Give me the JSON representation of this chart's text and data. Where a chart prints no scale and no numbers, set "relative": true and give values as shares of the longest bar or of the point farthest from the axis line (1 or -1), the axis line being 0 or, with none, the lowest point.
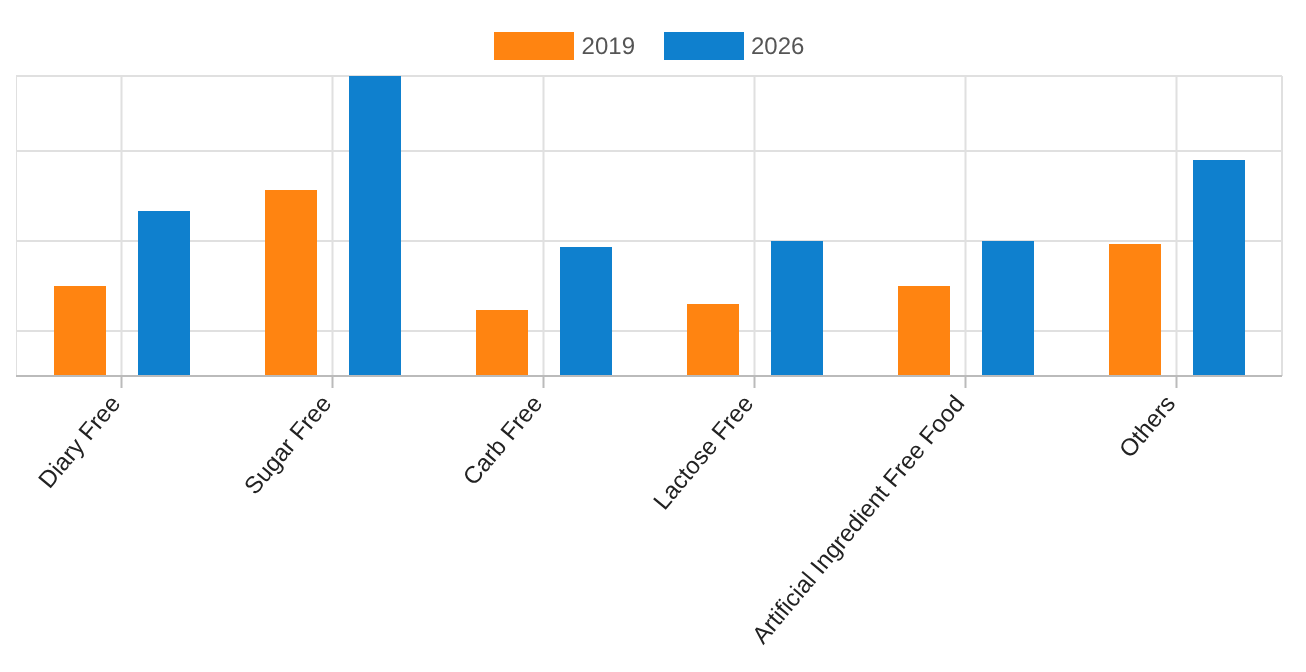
{
  "chart_data": {
    "type": "bar",
    "relative": true,
    "categories": [
      "Diary Free",
      "Sugar Free",
      "Carb Free",
      "Lactose Free",
      "Artificial Ingredient Free Food",
      "Others"
    ],
    "series": [
      {
        "name": "2019",
        "color": "#ff8411",
        "values": [
          0.3,
          0.62,
          0.22,
          0.24,
          0.3,
          0.44
        ]
      },
      {
        "name": "2026",
        "color": "#0f80ce",
        "values": [
          0.55,
          1,
          0.43,
          0.45,
          0.45,
          0.72
        ]
      }
    ],
    "grid": true,
    "legend": "top"
  }
}
